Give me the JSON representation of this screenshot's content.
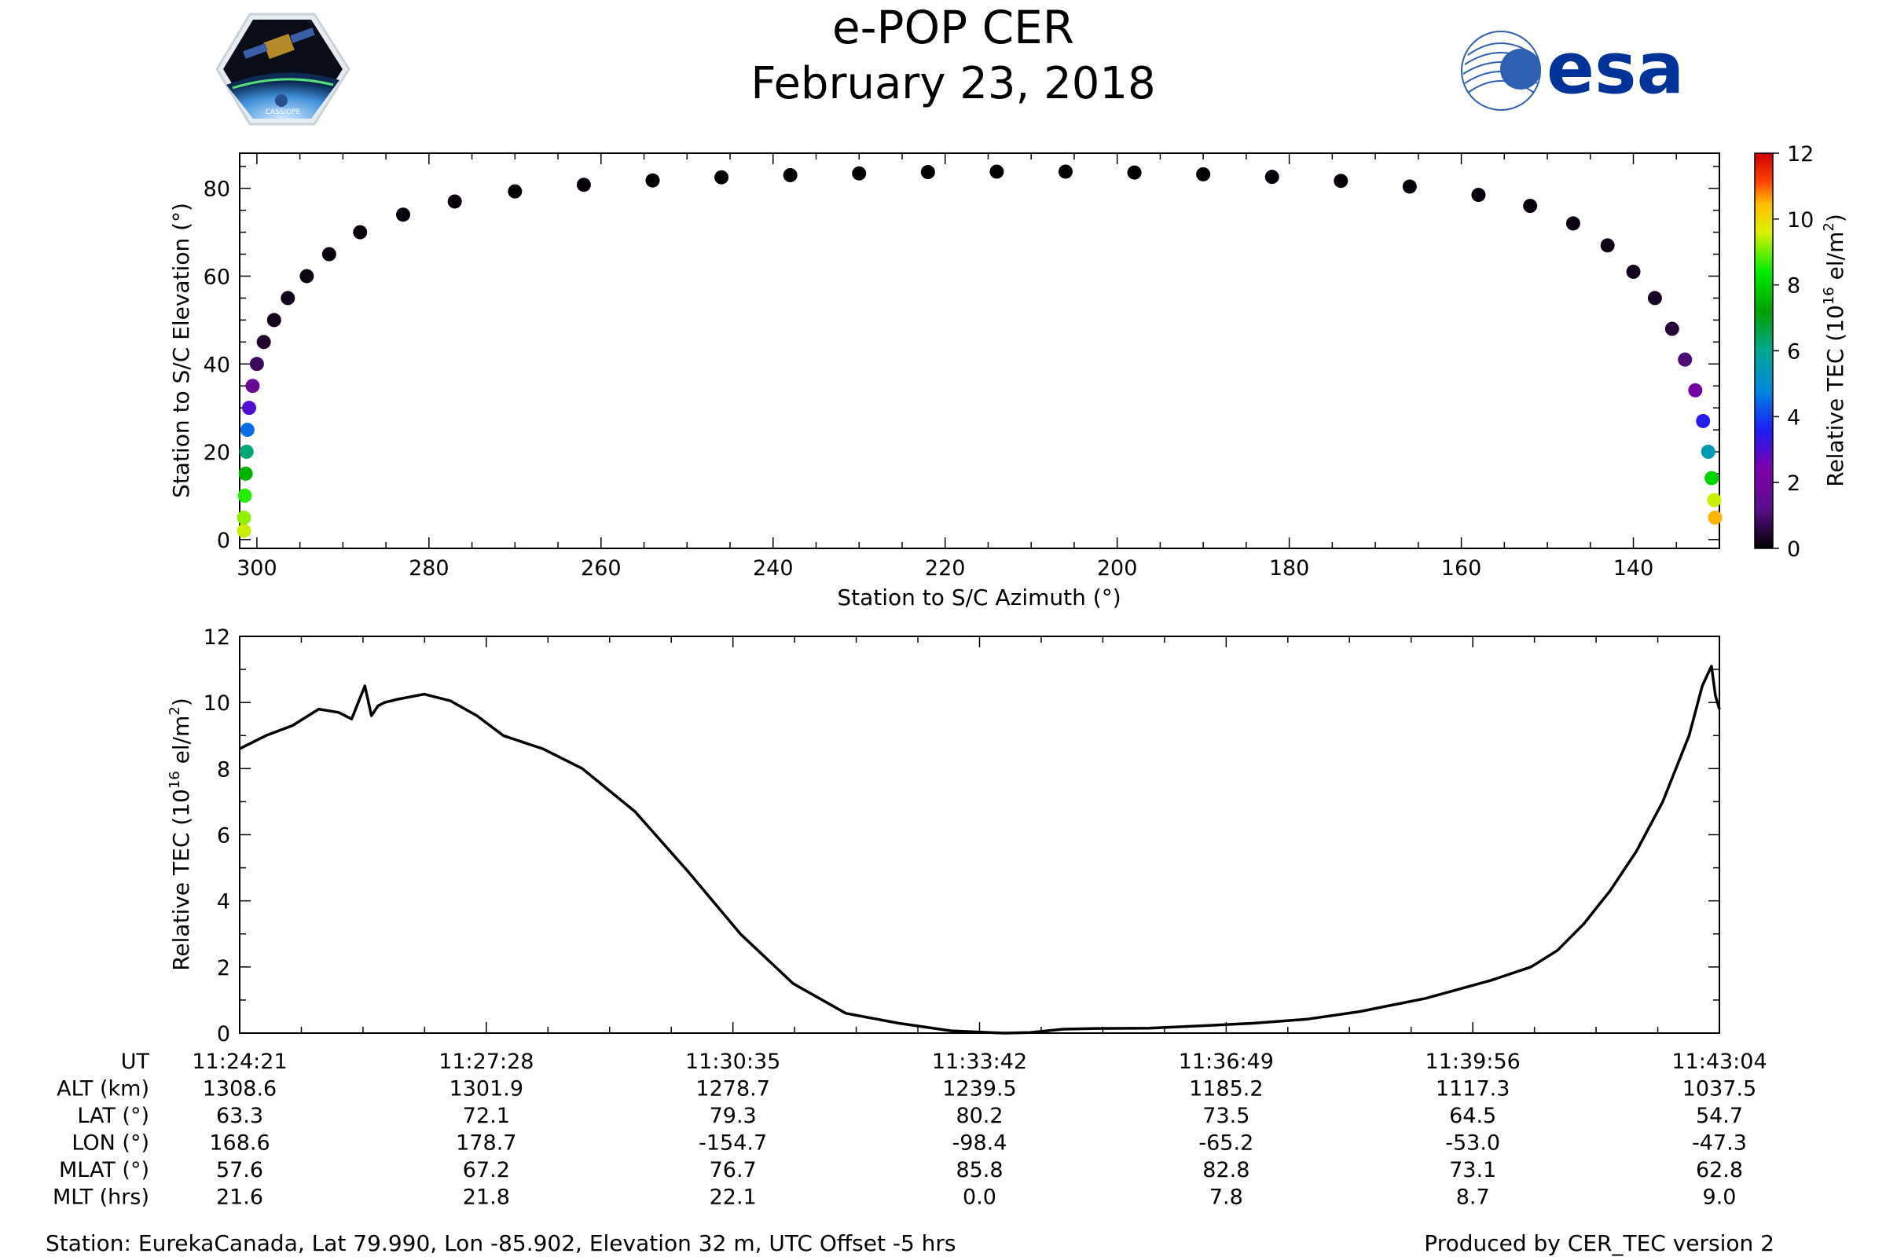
{
  "header": {
    "title": "e-POP CER",
    "date": "February 23, 2018",
    "left_logo_text": "CASSIOPE",
    "right_logo_text": "esa"
  },
  "colors": {
    "axis": "#000000",
    "esa_brand": "#003399",
    "marker_default": "#0d0a1e"
  },
  "chart_data": [
    {
      "type": "scatter",
      "xlabel": "Station to S/C Azimuth (°)",
      "ylabel": "Station to S/C Elevation (°)",
      "xlim": [
        302,
        130
      ],
      "ylim": [
        -2,
        88
      ],
      "xticks": [
        300,
        280,
        260,
        240,
        220,
        200,
        180,
        160,
        140
      ],
      "yticks": [
        0,
        20,
        40,
        60,
        80
      ],
      "colorbar": {
        "label": "Relative TEC (10^16 el/m^2)",
        "label_main": "Relative TEC (10",
        "label_sup": "16",
        "label_tail": " el/m",
        "label_sup2": "2",
        "label_end": ")",
        "ticks": [
          0,
          2,
          4,
          6,
          8,
          10,
          12
        ],
        "range": [
          0,
          12
        ],
        "colormap": "nipy_spectral"
      },
      "points": [
        {
          "az": 301.5,
          "el": 2,
          "tec": 9.5
        },
        {
          "az": 301.5,
          "el": 5,
          "tec": 9.2
        },
        {
          "az": 301.4,
          "el": 10,
          "tec": 8.6
        },
        {
          "az": 301.3,
          "el": 15,
          "tec": 7.5
        },
        {
          "az": 301.2,
          "el": 20,
          "tec": 6.2
        },
        {
          "az": 301.1,
          "el": 25,
          "tec": 4.5
        },
        {
          "az": 300.9,
          "el": 30,
          "tec": 3.0
        },
        {
          "az": 300.5,
          "el": 35,
          "tec": 1.6
        },
        {
          "az": 300.0,
          "el": 40,
          "tec": 0.8
        },
        {
          "az": 299.2,
          "el": 45,
          "tec": 0.4
        },
        {
          "az": 298.0,
          "el": 50,
          "tec": 0.25
        },
        {
          "az": 296.4,
          "el": 55,
          "tec": 0.2
        },
        {
          "az": 294.2,
          "el": 60,
          "tec": 0.15
        },
        {
          "az": 291.6,
          "el": 65,
          "tec": 0.1
        },
        {
          "az": 288.0,
          "el": 70,
          "tec": 0.1
        },
        {
          "az": 283.0,
          "el": 74,
          "tec": 0.08
        },
        {
          "az": 277.0,
          "el": 77,
          "tec": 0.06
        },
        {
          "az": 270.0,
          "el": 79.3,
          "tec": 0.05
        },
        {
          "az": 262.0,
          "el": 80.8,
          "tec": 0.04
        },
        {
          "az": 254.0,
          "el": 81.8,
          "tec": 0.03
        },
        {
          "az": 246.0,
          "el": 82.5,
          "tec": 0.02
        },
        {
          "az": 238.0,
          "el": 83.0,
          "tec": 0.02
        },
        {
          "az": 230.0,
          "el": 83.4,
          "tec": 0.01
        },
        {
          "az": 222.0,
          "el": 83.7,
          "tec": 0.01
        },
        {
          "az": 214.0,
          "el": 83.8,
          "tec": 0.01
        },
        {
          "az": 206.0,
          "el": 83.8,
          "tec": 0.02
        },
        {
          "az": 198.0,
          "el": 83.6,
          "tec": 0.03
        },
        {
          "az": 190.0,
          "el": 83.2,
          "tec": 0.04
        },
        {
          "az": 182.0,
          "el": 82.6,
          "tec": 0.05
        },
        {
          "az": 174.0,
          "el": 81.7,
          "tec": 0.06
        },
        {
          "az": 166.0,
          "el": 80.4,
          "tec": 0.08
        },
        {
          "az": 158.0,
          "el": 78.5,
          "tec": 0.1
        },
        {
          "az": 152.0,
          "el": 76.0,
          "tec": 0.12
        },
        {
          "az": 147.0,
          "el": 72.0,
          "tec": 0.15
        },
        {
          "az": 143.0,
          "el": 67.0,
          "tec": 0.2
        },
        {
          "az": 140.0,
          "el": 61.0,
          "tec": 0.25
        },
        {
          "az": 137.5,
          "el": 55.0,
          "tec": 0.3
        },
        {
          "az": 135.5,
          "el": 48.0,
          "tec": 0.5
        },
        {
          "az": 134.0,
          "el": 41.0,
          "tec": 1.0
        },
        {
          "az": 132.8,
          "el": 34.0,
          "tec": 2.0
        },
        {
          "az": 131.9,
          "el": 27.0,
          "tec": 3.5
        },
        {
          "az": 131.3,
          "el": 20.0,
          "tec": 5.5
        },
        {
          "az": 130.9,
          "el": 14.0,
          "tec": 8.0
        },
        {
          "az": 130.6,
          "el": 9.0,
          "tec": 9.5
        },
        {
          "az": 130.5,
          "el": 5.0,
          "tec": 10.5
        }
      ]
    },
    {
      "type": "line",
      "xlabel": "",
      "ylabel": "Relative TEC (10^16 el/m^2)",
      "ylabel_main": "Relative TEC (10",
      "ylabel_sup": "16",
      "ylabel_tail": " el/m",
      "ylabel_sup2": "2",
      "ylabel_end": ")",
      "xlim": [
        0,
        1123
      ],
      "ylim": [
        0,
        12
      ],
      "yticks": [
        0,
        2,
        4,
        6,
        8,
        10,
        12
      ],
      "x_units": "seconds after 11:24:21 UT",
      "series": [
        {
          "x": [
            0,
            20,
            40,
            60,
            75,
            85,
            95,
            100,
            105,
            110,
            120,
            140,
            160,
            180,
            200,
            230,
            260,
            300,
            340,
            380,
            420,
            460,
            500,
            540,
            580,
            600,
            625,
            650,
            690,
            730,
            770,
            810,
            850,
            900,
            950,
            980,
            1000,
            1020,
            1040,
            1060,
            1080,
            1100,
            1110,
            1117,
            1120,
            1123
          ],
          "y": [
            8.6,
            9.0,
            9.3,
            9.8,
            9.7,
            9.5,
            10.5,
            9.6,
            9.9,
            10.0,
            10.1,
            10.25,
            10.05,
            9.6,
            9.0,
            8.6,
            8.0,
            6.7,
            4.9,
            3.0,
            1.5,
            0.6,
            0.3,
            0.07,
            0.0,
            0.02,
            0.12,
            0.14,
            0.15,
            0.22,
            0.3,
            0.42,
            0.65,
            1.05,
            1.6,
            2.0,
            2.5,
            3.3,
            4.3,
            5.5,
            7.0,
            9.0,
            10.5,
            11.1,
            10.2,
            9.8
          ]
        }
      ]
    }
  ],
  "footer_table": {
    "row_labels": [
      "UT",
      "ALT (km)",
      "LAT (°)",
      "LON (°)",
      "MLAT (°)",
      "MLT (hrs)"
    ],
    "columns": [
      [
        "11:24:21",
        "1308.6",
        "63.3",
        "168.6",
        "57.6",
        "21.6"
      ],
      [
        "11:27:28",
        "1301.9",
        "72.1",
        "178.7",
        "67.2",
        "21.8"
      ],
      [
        "11:30:35",
        "1278.7",
        "79.3",
        "-154.7",
        "76.7",
        "22.1"
      ],
      [
        "11:33:42",
        "1239.5",
        "80.2",
        "-98.4",
        "85.8",
        "0.0"
      ],
      [
        "11:36:49",
        "1185.2",
        "73.5",
        "-65.2",
        "82.8",
        "7.8"
      ],
      [
        "11:39:56",
        "1117.3",
        "64.5",
        "-53.0",
        "73.1",
        "8.7"
      ],
      [
        "11:43:04",
        "1037.5",
        "54.7",
        "-47.3",
        "62.8",
        "9.0"
      ]
    ]
  },
  "footer": {
    "station": "Station: EurekaCanada, Lat 79.990, Lon -85.902, Elevation 32 m, UTC Offset -5 hrs",
    "produced_by": "Produced by CER_TEC version 2"
  }
}
